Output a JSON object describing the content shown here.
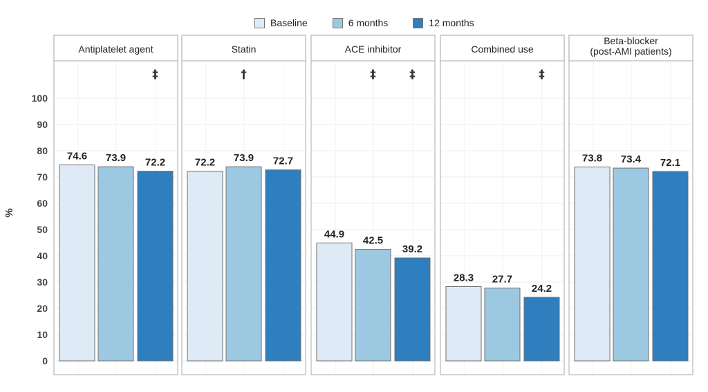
{
  "chart_data": {
    "type": "bar",
    "ylabel": "%",
    "ylim": [
      0,
      110
    ],
    "yticks": [
      0,
      10,
      20,
      30,
      40,
      50,
      60,
      70,
      80,
      90,
      100
    ],
    "grid": true,
    "legend_position": "top",
    "series": [
      {
        "name": "Baseline",
        "color": "#deeaf6"
      },
      {
        "name": "6 months",
        "color": "#9dc8e1"
      },
      {
        "name": "12 months",
        "color": "#2f7fbf"
      }
    ],
    "panels": [
      {
        "title": [
          "Antiplatelet agent"
        ],
        "values": [
          74.6,
          73.9,
          72.2
        ],
        "value_labels": [
          "74.6",
          "73.9",
          "72.2"
        ],
        "marks": [
          "",
          "",
          "‡"
        ]
      },
      {
        "title": [
          "Statin"
        ],
        "values": [
          72.2,
          73.9,
          72.7
        ],
        "value_labels": [
          "72.2",
          "73.9",
          "72.7"
        ],
        "marks": [
          "",
          "†",
          ""
        ]
      },
      {
        "title": [
          "ACE inhibitor"
        ],
        "values": [
          44.9,
          42.5,
          39.2
        ],
        "value_labels": [
          "44.9",
          "42.5",
          "39.2"
        ],
        "marks": [
          "",
          "‡",
          "‡"
        ]
      },
      {
        "title": [
          "Combined use"
        ],
        "values": [
          28.3,
          27.7,
          24.2
        ],
        "value_labels": [
          "28.3",
          "27.7",
          "24.2"
        ],
        "marks": [
          "",
          "",
          "‡"
        ]
      },
      {
        "title": [
          "Beta-blocker",
          "(post-AMI patients)"
        ],
        "values": [
          73.8,
          73.4,
          72.1
        ],
        "value_labels": [
          "73.8",
          "73.4",
          "72.1"
        ],
        "marks": [
          "",
          "",
          ""
        ]
      }
    ]
  }
}
